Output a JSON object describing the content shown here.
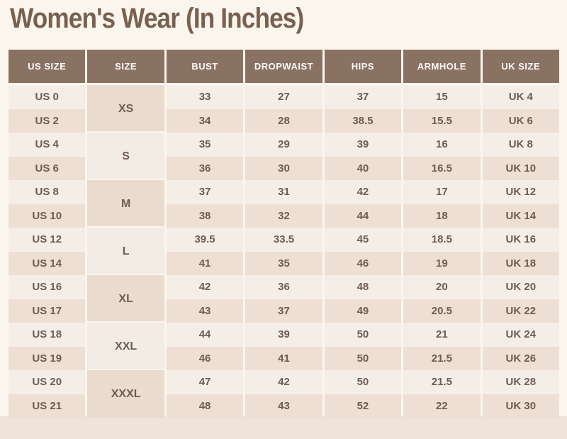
{
  "page": {
    "title": "Women's Wear (In Inches)"
  },
  "colors": {
    "page_bg": "#faf6ee",
    "band_color": "#f0e3da",
    "header_bg": "#8a7263",
    "header_text": "#fdfbf8",
    "row_light": "#f5eee7",
    "row_dark": "#eddfd4",
    "size_dark": "#eadbce",
    "size_light": "#f3ece5",
    "cell_text": "#6e5c51",
    "title_color": "#7a6051",
    "sep_color": "#f9f5ee"
  },
  "chart_data": {
    "type": "table",
    "title": "Women's Wear (In Inches)",
    "columns": [
      "US SIZE",
      "SIZE",
      "BUST",
      "DROPWAIST",
      "HIPS",
      "ARMHOLE",
      "UK SIZE"
    ],
    "groups": [
      {
        "size": "XS",
        "rows": [
          [
            "US 0",
            "33",
            "27",
            "37",
            "15",
            "UK 4"
          ],
          [
            "US 2",
            "34",
            "28",
            "38.5",
            "15.5",
            "UK 6"
          ]
        ]
      },
      {
        "size": "S",
        "rows": [
          [
            "US 4",
            "35",
            "29",
            "39",
            "16",
            "UK 8"
          ],
          [
            "US 6",
            "36",
            "30",
            "40",
            "16.5",
            "UK 10"
          ]
        ]
      },
      {
        "size": "M",
        "rows": [
          [
            "US 8",
            "37",
            "31",
            "42",
            "17",
            "UK 12"
          ],
          [
            "US 10",
            "38",
            "32",
            "44",
            "18",
            "UK 14"
          ]
        ]
      },
      {
        "size": "L",
        "rows": [
          [
            "US 12",
            "39.5",
            "33.5",
            "45",
            "18.5",
            "UK 16"
          ],
          [
            "US 14",
            "41",
            "35",
            "46",
            "19",
            "UK 18"
          ]
        ]
      },
      {
        "size": "XL",
        "rows": [
          [
            "US 16",
            "42",
            "36",
            "48",
            "20",
            "UK 20"
          ],
          [
            "US 17",
            "43",
            "37",
            "49",
            "20.5",
            "UK 22"
          ]
        ]
      },
      {
        "size": "XXL",
        "rows": [
          [
            "US 18",
            "44",
            "39",
            "50",
            "21",
            "UK 24"
          ],
          [
            "US 19",
            "46",
            "41",
            "50",
            "21.5",
            "UK 26"
          ]
        ]
      },
      {
        "size": "XXXL",
        "rows": [
          [
            "US 20",
            "47",
            "42",
            "50",
            "21.5",
            "UK 28"
          ],
          [
            "US 21",
            "48",
            "43",
            "52",
            "22",
            "UK 30"
          ]
        ]
      }
    ]
  }
}
